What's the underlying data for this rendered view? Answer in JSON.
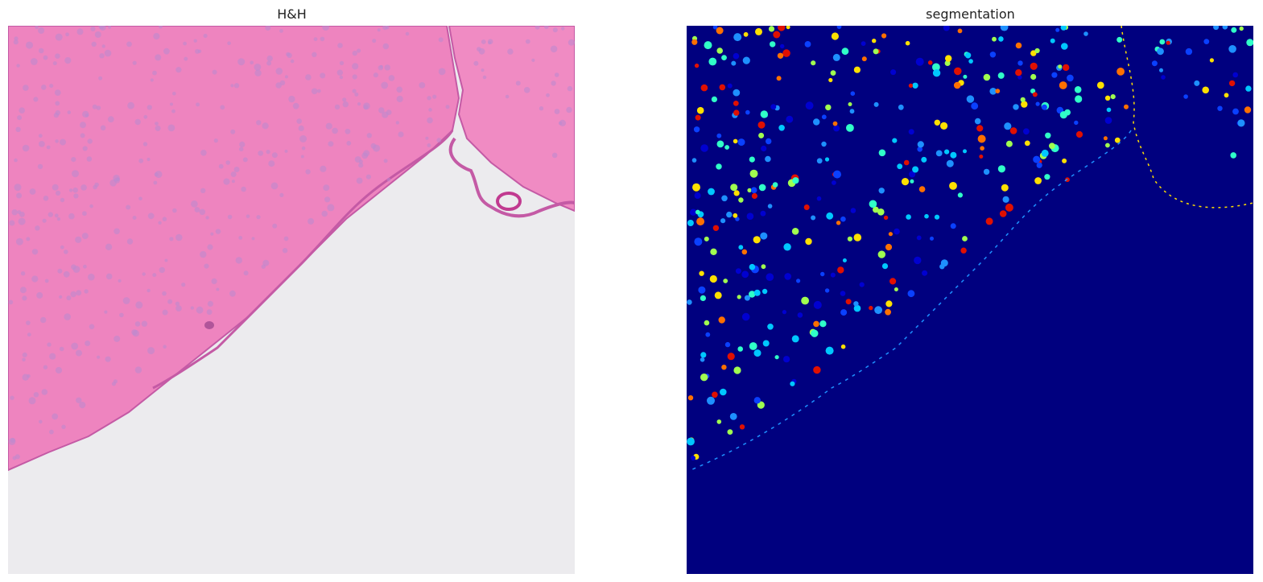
{
  "figure": {
    "panels": [
      {
        "id": "he",
        "title": "H&H"
      },
      {
        "id": "seg",
        "title": "segmentation"
      }
    ]
  },
  "colors": {
    "tissue": "#ee84bf",
    "tissue_edge": "#c45aa5",
    "background_slide": "#ecebee",
    "seg_background": "#00007f",
    "seg_palette": [
      "#0000d0",
      "#0a40ff",
      "#1e90ff",
      "#00c8ff",
      "#30ffc8",
      "#a0ff50",
      "#ffe000",
      "#ff7000",
      "#e01000"
    ]
  }
}
